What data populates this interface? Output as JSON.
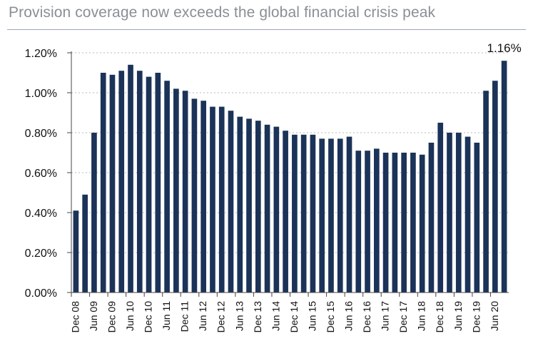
{
  "chart_data": {
    "type": "bar",
    "title": "Provision coverage now exceeds the global financial crisis peak",
    "xlabel": "",
    "ylabel": "",
    "ylim": [
      0,
      1.2
    ],
    "yticks": [
      "0.00%",
      "0.20%",
      "0.40%",
      "0.60%",
      "0.80%",
      "1.00%",
      "1.20%"
    ],
    "grid": "horizontal dotted",
    "x_tick_labels": [
      "Dec 08",
      "Jun 09",
      "Dec 09",
      "Jun 10",
      "Dec 10",
      "Jun 11",
      "Dec 11",
      "Jun 12",
      "Dec 12",
      "Jun 13",
      "Dec 13",
      "Jun 14",
      "Dec 14",
      "Jun 15",
      "Dec 15",
      "Jun 16",
      "Dec 16",
      "Jun 17",
      "Dec 17",
      "Jun 18",
      "Dec 18",
      "Jun 19",
      "Dec 19",
      "Jun 20"
    ],
    "values": [
      0.41,
      0.49,
      0.8,
      1.1,
      1.09,
      1.11,
      1.14,
      1.11,
      1.08,
      1.1,
      1.06,
      1.02,
      1.01,
      0.97,
      0.96,
      0.93,
      0.93,
      0.91,
      0.88,
      0.87,
      0.86,
      0.84,
      0.83,
      0.81,
      0.79,
      0.79,
      0.79,
      0.77,
      0.77,
      0.77,
      0.78,
      0.71,
      0.71,
      0.72,
      0.7,
      0.7,
      0.7,
      0.7,
      0.69,
      0.75,
      0.85,
      0.8,
      0.8,
      0.78,
      0.75,
      1.01,
      1.06,
      1.16
    ],
    "bar_color": "#1b3358",
    "annotation": "1.16%"
  }
}
